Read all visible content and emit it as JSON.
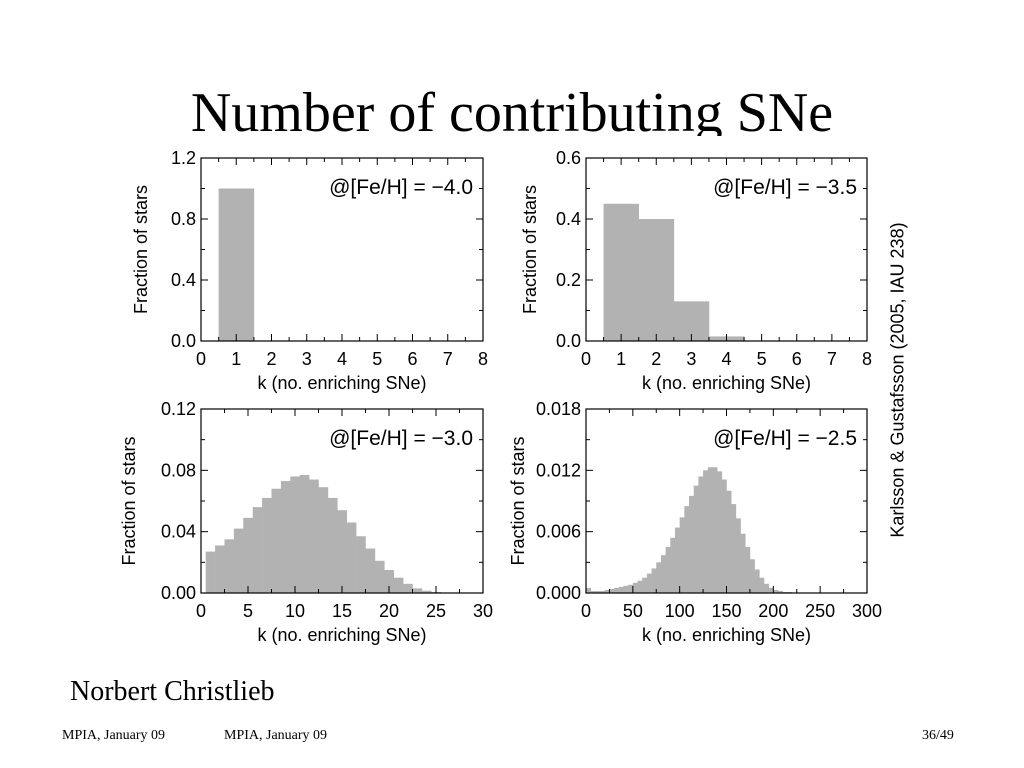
{
  "slide": {
    "title": "Number of contributing SNe",
    "citation": "Karlsson & Gustafsson (2005, IAU 238)",
    "author": "Norbert Christlieb",
    "footer_left": "MPIA, January 09",
    "footer_center": "MPIA, January 09",
    "page_number": "36/49"
  },
  "colors": {
    "bar": "#b2b2b2",
    "axis": "#000000"
  },
  "chart_data": [
    {
      "type": "bar",
      "annotation": "@[Fe/H] = −4.0",
      "xlabel": "k (no. enriching SNe)",
      "ylabel": "Fraction of stars",
      "xlim": [
        0,
        8
      ],
      "ylim": [
        0,
        1.2
      ],
      "xticks": [
        "0",
        "1",
        "2",
        "3",
        "4",
        "5",
        "6",
        "7",
        "8"
      ],
      "yticks": [
        "0.0",
        "0.4",
        "0.8",
        "1.2"
      ],
      "bin_width": 1,
      "bins": [
        1
      ],
      "values": [
        1.0
      ]
    },
    {
      "type": "bar",
      "annotation": "@[Fe/H] = −3.5",
      "xlabel": "k (no. enriching SNe)",
      "ylabel": "Fraction of stars",
      "xlim": [
        0,
        8
      ],
      "ylim": [
        0,
        0.6
      ],
      "xticks": [
        "0",
        "1",
        "2",
        "3",
        "4",
        "5",
        "6",
        "7",
        "8"
      ],
      "yticks": [
        "0.0",
        "0.2",
        "0.4",
        "0.6"
      ],
      "bin_width": 1,
      "bins": [
        1,
        2,
        3,
        4
      ],
      "values": [
        0.45,
        0.4,
        0.13,
        0.015
      ]
    },
    {
      "type": "bar",
      "annotation": "@[Fe/H] = −3.0",
      "xlabel": "k (no. enriching SNe)",
      "ylabel": "Fraction of stars",
      "xlim": [
        0,
        30
      ],
      "ylim": [
        0,
        0.12
      ],
      "xticks": [
        "0",
        "5",
        "10",
        "15",
        "20",
        "25",
        "30"
      ],
      "yticks": [
        "0.00",
        "0.04",
        "0.08",
        "0.12"
      ],
      "bin_width": 1,
      "bins": [
        1,
        2,
        3,
        4,
        5,
        6,
        7,
        8,
        9,
        10,
        11,
        12,
        13,
        14,
        15,
        16,
        17,
        18,
        19,
        20,
        21,
        22,
        23,
        24,
        25
      ],
      "values": [
        0.027,
        0.031,
        0.035,
        0.042,
        0.049,
        0.056,
        0.062,
        0.068,
        0.073,
        0.076,
        0.077,
        0.074,
        0.069,
        0.062,
        0.054,
        0.046,
        0.037,
        0.029,
        0.021,
        0.015,
        0.01,
        0.006,
        0.003,
        0.0015,
        0.0007
      ]
    },
    {
      "type": "bar",
      "annotation": "@[Fe/H] = −2.5",
      "xlabel": "k (no. enriching SNe)",
      "ylabel": "Fraction of stars",
      "xlim": [
        0,
        300
      ],
      "ylim": [
        0,
        0.018
      ],
      "xticks": [
        "0",
        "50",
        "100",
        "150",
        "200",
        "250",
        "300"
      ],
      "yticks": [
        "0.000",
        "0.006",
        "0.012",
        "0.018"
      ],
      "bin_width": 5,
      "bins": [
        0,
        5,
        10,
        15,
        20,
        25,
        30,
        35,
        40,
        45,
        50,
        55,
        60,
        65,
        70,
        75,
        80,
        85,
        90,
        95,
        100,
        105,
        110,
        115,
        120,
        125,
        130,
        135,
        140,
        145,
        150,
        155,
        160,
        165,
        170,
        175,
        180,
        185,
        190,
        195,
        200,
        205,
        210,
        215,
        220,
        225,
        230,
        235,
        240,
        245
      ],
      "values": [
        0.0005,
        0.0002,
        0.0002,
        0.0002,
        0.0003,
        0.0004,
        0.0005,
        0.0006,
        0.0007,
        0.0008,
        0.001,
        0.0012,
        0.0015,
        0.0019,
        0.0024,
        0.003,
        0.0037,
        0.0045,
        0.0054,
        0.0064,
        0.0074,
        0.0085,
        0.0095,
        0.0105,
        0.0114,
        0.012,
        0.0123,
        0.0123,
        0.0119,
        0.0111,
        0.01,
        0.0087,
        0.0073,
        0.0058,
        0.0045,
        0.0033,
        0.0023,
        0.0015,
        0.0009,
        0.0005,
        0.0003,
        0.0002,
        0.0001,
        0.0001,
        5e-05,
        3e-05,
        2e-05,
        1e-05,
        0.0,
        0.0
      ]
    }
  ]
}
